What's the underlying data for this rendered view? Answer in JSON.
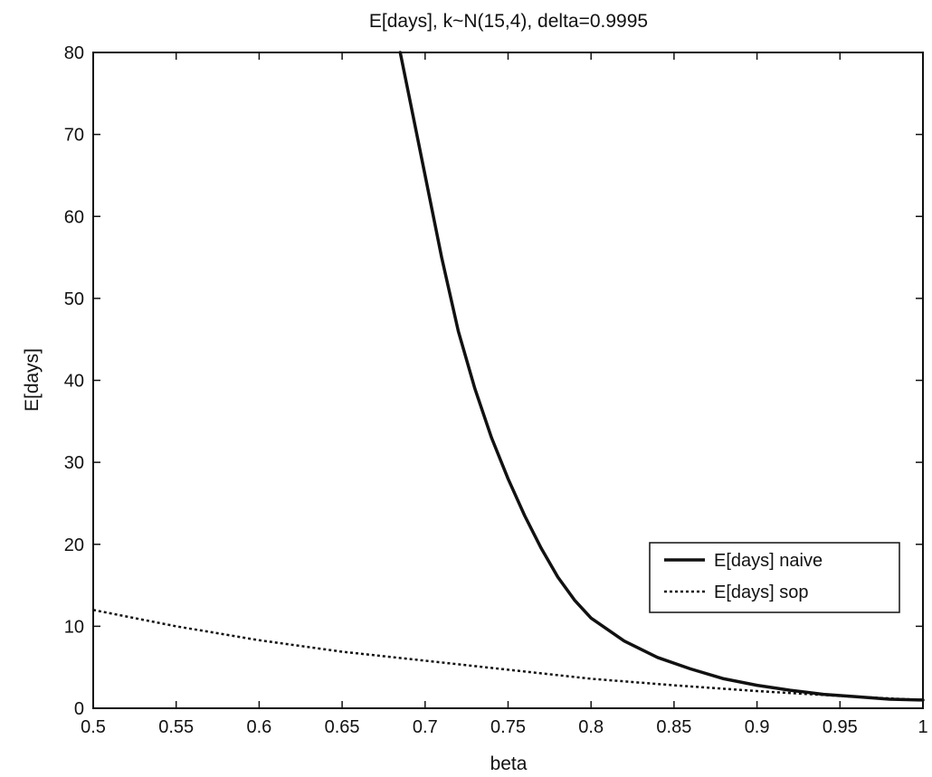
{
  "chart_data": {
    "type": "line",
    "title": "E[days], k~N(15,4), delta=0.9995",
    "xlabel": "beta",
    "ylabel": "E[days]",
    "xlim": [
      0.5,
      1
    ],
    "ylim": [
      0,
      80
    ],
    "xticks": [
      0.5,
      0.55,
      0.6,
      0.65,
      0.7,
      0.75,
      0.8,
      0.85,
      0.9,
      0.95,
      1
    ],
    "xtick_labels": [
      "0.5",
      "0.55",
      "0.6",
      "0.65",
      "0.7",
      "0.75",
      "0.8",
      "0.85",
      "0.9",
      "0.95",
      "1"
    ],
    "yticks": [
      0,
      10,
      20,
      30,
      40,
      50,
      60,
      70,
      80
    ],
    "ytick_labels": [
      "0",
      "10",
      "20",
      "30",
      "40",
      "50",
      "60",
      "70",
      "80"
    ],
    "grid": false,
    "legend_position": "lower-right",
    "series": [
      {
        "name": "E[days] naive",
        "style": "solid",
        "color": "#111111",
        "x": [
          0.685,
          0.69,
          0.7,
          0.71,
          0.72,
          0.73,
          0.74,
          0.75,
          0.76,
          0.77,
          0.78,
          0.79,
          0.8,
          0.82,
          0.84,
          0.86,
          0.88,
          0.9,
          0.92,
          0.94,
          0.96,
          0.98,
          1.0
        ],
        "y": [
          80,
          75,
          65,
          55,
          46,
          39,
          33,
          28,
          23.5,
          19.5,
          16,
          13.2,
          11,
          8.2,
          6.2,
          4.8,
          3.6,
          2.8,
          2.2,
          1.7,
          1.4,
          1.1,
          1.0
        ]
      },
      {
        "name": "E[days] sop",
        "style": "dotted",
        "color": "#111111",
        "x": [
          0.5,
          0.55,
          0.6,
          0.65,
          0.7,
          0.75,
          0.8,
          0.85,
          0.9,
          0.95,
          1.0
        ],
        "y": [
          12,
          10,
          8.3,
          6.9,
          5.8,
          4.7,
          3.6,
          2.8,
          2.1,
          1.5,
          1.0
        ]
      }
    ]
  }
}
